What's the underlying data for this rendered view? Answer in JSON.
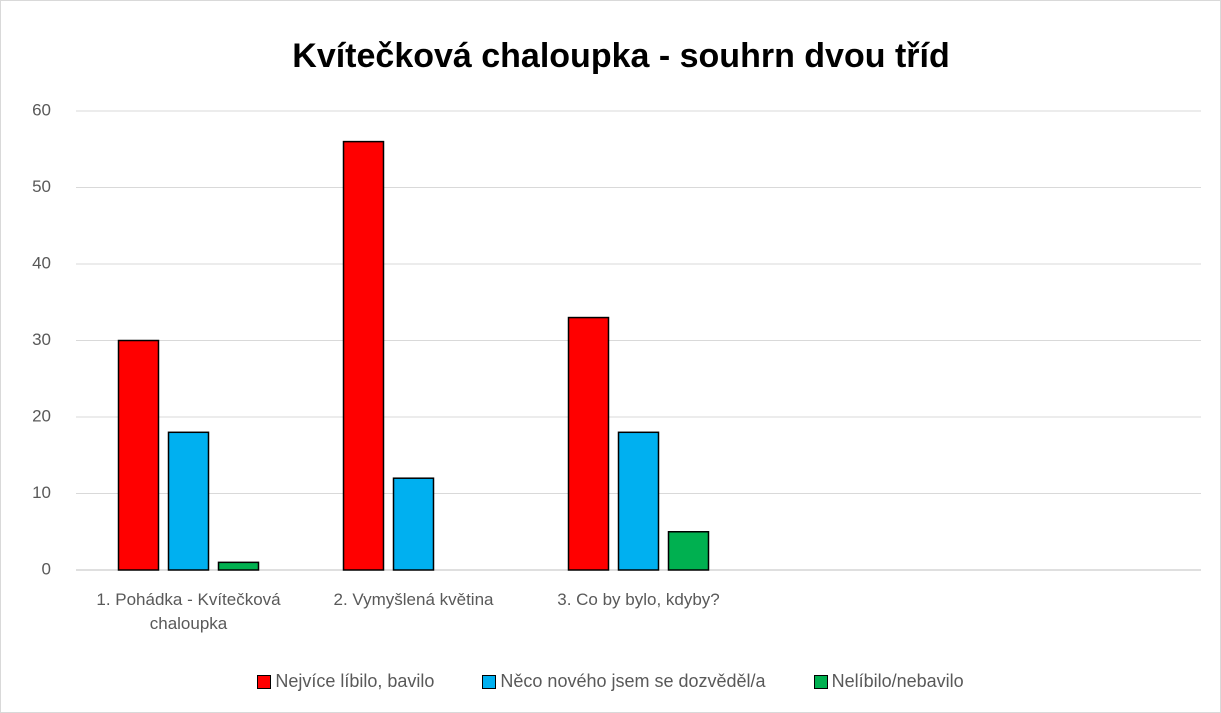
{
  "chart_data": {
    "type": "bar",
    "title": "Kvítečková chaloupka - souhrn dvou tříd",
    "categories": [
      "1. Pohádka - Kvítečková chaloupka",
      "2. Vymyšlená květina",
      "3. Co by bylo, kdyby?",
      null,
      null
    ],
    "series": [
      {
        "name": "Nejvíce líbilo, bavilo",
        "color": "#ff0000",
        "values": [
          30,
          56,
          33,
          null,
          null
        ]
      },
      {
        "name": "Něco nového jsem se dozvěděl/a",
        "color": "#00b0f0",
        "values": [
          18,
          12,
          18,
          null,
          null
        ]
      },
      {
        "name": "Nelíbilo/nebavilo",
        "color": "#00b050",
        "values": [
          1,
          0,
          5,
          null,
          null
        ]
      }
    ],
    "ylim": [
      0,
      60
    ],
    "yticks": [
      0,
      10,
      20,
      30,
      40,
      50,
      60
    ],
    "grid": true,
    "legend": "bottom"
  }
}
